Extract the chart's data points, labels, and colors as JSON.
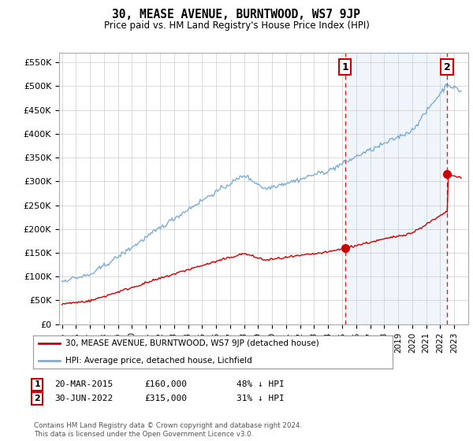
{
  "title": "30, MEASE AVENUE, BURNTWOOD, WS7 9JP",
  "subtitle": "Price paid vs. HM Land Registry's House Price Index (HPI)",
  "ylim": [
    0,
    570000
  ],
  "yticks": [
    0,
    50000,
    100000,
    150000,
    200000,
    250000,
    300000,
    350000,
    400000,
    450000,
    500000,
    550000
  ],
  "ytick_labels": [
    "£0",
    "£50K",
    "£100K",
    "£150K",
    "£200K",
    "£250K",
    "£300K",
    "£350K",
    "£400K",
    "£450K",
    "£500K",
    "£550K"
  ],
  "legend_entries": [
    "30, MEASE AVENUE, BURNTWOOD, WS7 9JP (detached house)",
    "HPI: Average price, detached house, Lichfield"
  ],
  "legend_colors": [
    "#cc0000",
    "#6699cc"
  ],
  "annotation1": {
    "label": "1",
    "date": "20-MAR-2015",
    "price": "£160,000",
    "pct": "48% ↓ HPI"
  },
  "annotation2": {
    "label": "2",
    "date": "30-JUN-2022",
    "price": "£315,000",
    "pct": "31% ↓ HPI"
  },
  "footer": "Contains HM Land Registry data © Crown copyright and database right 2024.\nThis data is licensed under the Open Government Licence v3.0.",
  "hpi_color": "#7aaed6",
  "hpi_fill_color": "#ddeeff",
  "price_color": "#cc0000",
  "dashed_line_color": "#cc0000",
  "background_color": "#ffffff",
  "grid_color": "#cccccc",
  "sale1_year": 2015.2,
  "sale1_price": 160000,
  "sale2_year": 2022.5,
  "sale2_price": 315000,
  "xmin": 1995,
  "xmax": 2023.5
}
